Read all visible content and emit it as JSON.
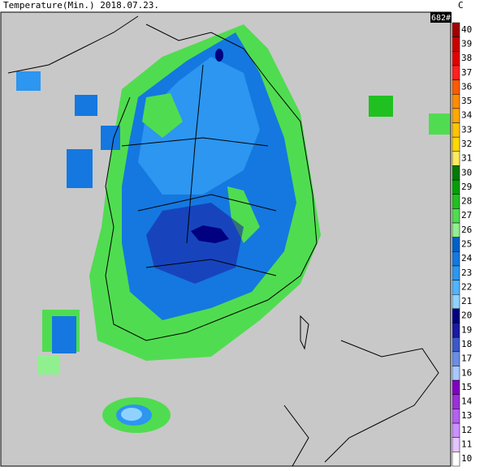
{
  "header": {
    "title": "Temperature(Min.)  2018.07.23.",
    "unit": "C",
    "station_count": "682#"
  },
  "legend": {
    "labels": [
      40,
      39,
      38,
      37,
      36,
      35,
      34,
      33,
      32,
      31,
      30,
      29,
      28,
      27,
      26,
      25,
      24,
      23,
      22,
      21,
      20,
      19,
      18,
      17,
      16,
      15,
      14,
      13,
      12,
      11,
      10
    ],
    "colors": [
      "#a00000",
      "#c80000",
      "#e00000",
      "#ff2020",
      "#ff5a00",
      "#ff8c00",
      "#ffa800",
      "#ffc400",
      "#ffd800",
      "#ffea60",
      "#007a00",
      "#00a000",
      "#20c020",
      "#50dc50",
      "#90f090",
      "#0060c8",
      "#1478e0",
      "#2c96f0",
      "#50b4ff",
      "#90d2ff",
      "#000080",
      "#1a1aa0",
      "#3a58c8",
      "#6a8ee6",
      "#a8c8ff",
      "#8000c0",
      "#9a30d8",
      "#b460f0",
      "#cc90ff",
      "#e4c4ff",
      "#ffffff"
    ]
  }
}
